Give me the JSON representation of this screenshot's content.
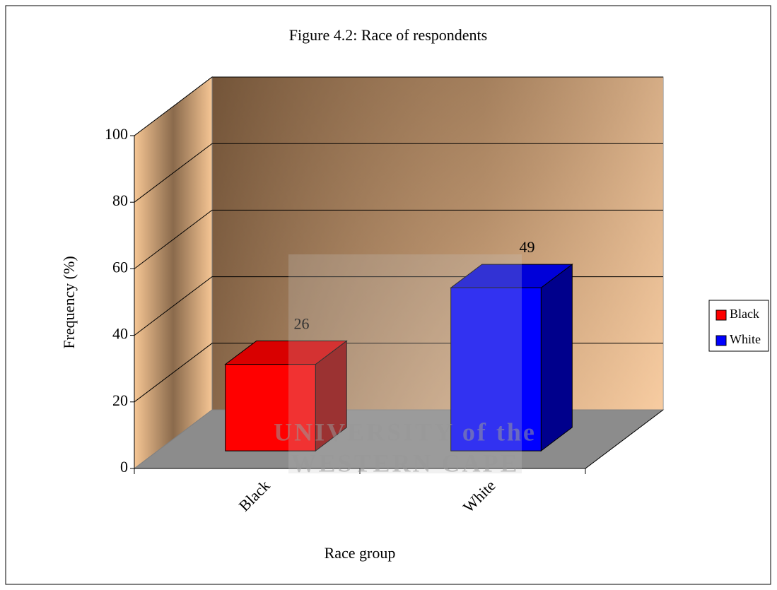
{
  "chart_data": {
    "type": "bar3d",
    "title": "Figure 4.2: Race of respondents",
    "x_label": "Race group",
    "y_label": "Frequency (%)",
    "categories": [
      "Black",
      "White"
    ],
    "values": [
      26,
      49
    ],
    "colors": [
      "#ff0000",
      "#0000ff"
    ],
    "ylim": [
      0,
      100
    ],
    "yticks": [
      0,
      20,
      40,
      60,
      80,
      100
    ],
    "grid": true,
    "legend": "right",
    "watermark": [
      "UNIVERSITY of the",
      "WESTERN CAPE"
    ]
  }
}
